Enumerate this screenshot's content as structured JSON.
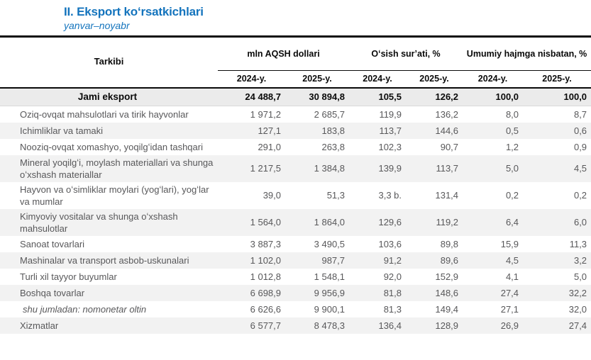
{
  "title": "II. Eksport koʻrsatkichlari",
  "subtitle": "yanvar–noyabr",
  "table": {
    "col_header": "Tarkibi",
    "groups": [
      {
        "label": "mln AQSH dollari"
      },
      {
        "label": "Oʻsish surʼati, %"
      },
      {
        "label": "Umumiy hajmga nisbatan, %"
      }
    ],
    "year_headers": [
      "2024-y.",
      "2025-y.",
      "2024-y.",
      "2025-y.",
      "2024-y.",
      "2025-y."
    ],
    "total_row": {
      "label": "Jami eksport",
      "values": [
        "24 488,7",
        "30 894,8",
        "105,5",
        "126,2",
        "100,0",
        "100,0"
      ]
    },
    "rows": [
      {
        "label": "Oziq-ovqat mahsulotlari va tirik hayvonlar",
        "values": [
          "1 971,2",
          "2 685,7",
          "119,9",
          "136,2",
          "8,0",
          "8,7"
        ]
      },
      {
        "label": "Ichimliklar va tamaki",
        "values": [
          "127,1",
          "183,8",
          "113,7",
          "144,6",
          "0,5",
          "0,6"
        ]
      },
      {
        "label": "Nooziq-ovqat xomashyo, yoqilgʻidan tashqari",
        "values": [
          "291,0",
          "263,8",
          "102,3",
          "90,7",
          "1,2",
          "0,9"
        ]
      },
      {
        "label": "Mineral yoqilgʻi, moylash materiallari va shunga oʻxshash materiallar",
        "values": [
          "1 217,5",
          "1 384,8",
          "139,9",
          "113,7",
          "5,0",
          "4,5"
        ]
      },
      {
        "label": "Hayvon va oʻsimliklar moylari (yogʻlari), yogʻlar va mumlar",
        "values": [
          "39,0",
          "51,3",
          "3,3 b.",
          "131,4",
          "0,2",
          "0,2"
        ]
      },
      {
        "label": "Kimyoviy vositalar va shunga oʻxshash mahsulotlar",
        "values": [
          "1 564,0",
          "1 864,0",
          "129,6",
          "119,2",
          "6,4",
          "6,0"
        ]
      },
      {
        "label": "Sanoat tovarlari",
        "values": [
          "3 887,3",
          "3 490,5",
          "103,6",
          "89,8",
          "15,9",
          "11,3"
        ]
      },
      {
        "label": "Mashinalar va transport asbob-uskunalari",
        "values": [
          "1 102,0",
          "987,7",
          "91,2",
          "89,6",
          "4,5",
          "3,2"
        ]
      },
      {
        "label": "Turli xil tayyor buyumlar",
        "values": [
          "1 012,8",
          "1 548,1",
          "92,0",
          "152,9",
          "4,1",
          "5,0"
        ]
      },
      {
        "label": "Boshqa tovarlar",
        "values": [
          "6 698,9",
          "9 956,9",
          "81,8",
          "148,6",
          "27,4",
          "32,2"
        ]
      },
      {
        "label": "shu jumladan: nomonetar oltin",
        "italic": true,
        "values": [
          "6 626,6",
          "9 900,1",
          "81,3",
          "149,4",
          "27,1",
          "32,0"
        ]
      },
      {
        "label": "Xizmatlar",
        "values": [
          "6 577,7",
          "8 478,3",
          "136,4",
          "128,9",
          "26,9",
          "27,4"
        ]
      }
    ]
  },
  "colors": {
    "accent_blue": "#1474bd",
    "alt_row_bg": "#f2f2f2",
    "total_row_bg": "#ebebeb",
    "body_text": "#58585a",
    "header_text": "#0a0a0a"
  }
}
